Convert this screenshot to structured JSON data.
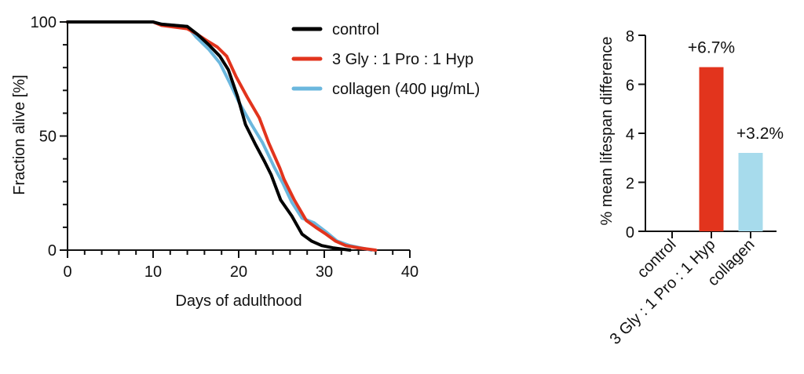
{
  "chart_data": [
    {
      "type": "line",
      "title": "",
      "xlabel": "Days of adulthood",
      "ylabel": "Fraction alive [%]",
      "xlim": [
        0,
        40
      ],
      "ylim": [
        0,
        100
      ],
      "xticks": [
        0,
        10,
        20,
        30,
        40
      ],
      "yticks": [
        0,
        50,
        100
      ],
      "x_minor_step": 2,
      "y_minor_step": 10,
      "grid": false,
      "legend": "top-right",
      "series": [
        {
          "name": "control",
          "color": "#000000",
          "points": [
            [
              0,
              100
            ],
            [
              10,
              100
            ],
            [
              11,
              99
            ],
            [
              14,
              98
            ],
            [
              15.2,
              94.5
            ],
            [
              16.5,
              90
            ],
            [
              17.8,
              85
            ],
            [
              18.8,
              79
            ],
            [
              19.9,
              67
            ],
            [
              20.8,
              55
            ],
            [
              22,
              46
            ],
            [
              23,
              39
            ],
            [
              23.8,
              33
            ],
            [
              24.9,
              22
            ],
            [
              26.2,
              15
            ],
            [
              27.4,
              7
            ],
            [
              28.5,
              4
            ],
            [
              29.7,
              2
            ],
            [
              31,
              1
            ],
            [
              33,
              0
            ]
          ]
        },
        {
          "name": "3 Gly : 1 Pro : 1 Hyp",
          "color": "#E2341D",
          "points": [
            [
              0,
              100
            ],
            [
              10,
              100
            ],
            [
              11,
              98.5
            ],
            [
              14,
              97
            ],
            [
              15,
              95
            ],
            [
              16.2,
              92
            ],
            [
              17.5,
              89
            ],
            [
              18.6,
              85
            ],
            [
              19.7,
              76
            ],
            [
              21,
              67
            ],
            [
              22.4,
              58
            ],
            [
              23.5,
              47
            ],
            [
              24.8,
              36
            ],
            [
              25.3,
              31
            ],
            [
              26.5,
              22
            ],
            [
              27.9,
              13
            ],
            [
              29,
              10
            ],
            [
              30.2,
              7
            ],
            [
              31.3,
              4
            ],
            [
              32.5,
              2
            ],
            [
              34,
              1
            ],
            [
              36,
              0
            ]
          ]
        },
        {
          "name": "collagen (400 μg/mL)",
          "color": "#6BB7DE",
          "points": [
            [
              0,
              100
            ],
            [
              10,
              100
            ],
            [
              11,
              99
            ],
            [
              14,
              98
            ],
            [
              15,
              93.5
            ],
            [
              16.5,
              88
            ],
            [
              17.8,
              82
            ],
            [
              19,
              73
            ],
            [
              20,
              65
            ],
            [
              21.5,
              55
            ],
            [
              22.8,
              47
            ],
            [
              24.2,
              36
            ],
            [
              25.2,
              29
            ],
            [
              26.2,
              21
            ],
            [
              27.4,
              14
            ],
            [
              28.8,
              12
            ],
            [
              30.2,
              8
            ],
            [
              31.5,
              4
            ],
            [
              33,
              2
            ],
            [
              35.5,
              0
            ]
          ]
        }
      ]
    },
    {
      "type": "bar",
      "title": "",
      "xlabel": "",
      "ylabel": "% mean lifespan difference",
      "ylim": [
        0,
        8
      ],
      "yticks": [
        0,
        2,
        4,
        6,
        8
      ],
      "grid": false,
      "categories": [
        "control",
        "3 Gly : 1 Pro : 1 Hyp",
        "collagen"
      ],
      "values": [
        0,
        6.7,
        3.2
      ],
      "colors": [
        "#000000",
        "#E2341D",
        "#A7DBEC"
      ],
      "data_labels": [
        "",
        "+6.7%",
        "+3.2%"
      ]
    }
  ]
}
